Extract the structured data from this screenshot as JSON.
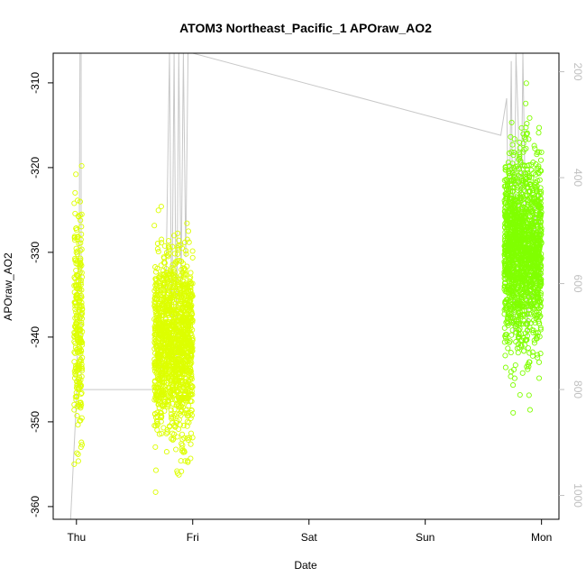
{
  "chart_data": {
    "type": "scatter",
    "title": "ATOM3 Northeast_Pacific_1 APOraw_AO2",
    "xlabel": "Date",
    "ylabel": "APOraw_AO2",
    "x_tick_labels": [
      "Thu",
      "Fri",
      "Sat",
      "Sun",
      "Mon"
    ],
    "x_range_days": [
      -0.2,
      4.15
    ],
    "y_ticks": [
      -360,
      -350,
      -340,
      -330,
      -320,
      -310
    ],
    "ylim": [
      -361.5,
      -306.5
    ],
    "right_axis": {
      "ticks": [
        200,
        400,
        600,
        800,
        1000
      ],
      "range": [
        1045,
        165
      ],
      "color": "#bfbfbf"
    },
    "point_colors": {
      "early": "#ddff00",
      "late": "#80ff00"
    },
    "line_color": "#c8c8c8",
    "point_clusters": [
      {
        "x_start": -0.02,
        "x_end": 0.05,
        "y_center": -338,
        "y_spread": 6.5,
        "y_min": -355,
        "y_max": -319.8,
        "count": 260,
        "color": "#ddff00"
      },
      {
        "x_start": 0.67,
        "x_end": 1.0,
        "y_center": -341,
        "y_spread": 5.2,
        "y_min": -359,
        "y_max": -318,
        "count": 1400,
        "color": "#ddff00"
      },
      {
        "x_start": 3.68,
        "x_end": 4.0,
        "y_center": -330,
        "y_spread": 5.6,
        "y_min": -353.5,
        "y_max": -305,
        "count": 1600,
        "color": "#80ff00"
      }
    ],
    "pressure_path": [
      [
        -0.05,
        1045
      ],
      [
        0.0,
        820
      ],
      [
        0.01,
        700
      ],
      [
        0.025,
        500
      ],
      [
        0.03,
        165
      ],
      [
        0.04,
        165
      ],
      [
        0.04,
        800
      ],
      [
        0.65,
        800
      ],
      [
        0.72,
        800
      ],
      [
        0.77,
        600
      ],
      [
        0.8,
        165
      ],
      [
        0.82,
        700
      ],
      [
        0.84,
        165
      ],
      [
        0.86,
        750
      ],
      [
        0.88,
        165
      ],
      [
        0.9,
        600
      ],
      [
        0.92,
        165
      ],
      [
        0.94,
        550
      ],
      [
        0.96,
        165
      ],
      [
        1.0,
        165
      ],
      [
        3.65,
        320
      ],
      [
        3.7,
        250
      ],
      [
        3.72,
        550
      ],
      [
        3.74,
        180
      ],
      [
        3.76,
        700
      ],
      [
        3.78,
        165
      ],
      [
        3.8,
        300
      ],
      [
        3.82,
        600
      ],
      [
        3.84,
        165
      ],
      [
        3.86,
        450
      ],
      [
        3.88,
        700
      ],
      [
        3.9,
        500
      ],
      [
        3.92,
        650
      ],
      [
        3.94,
        450
      ],
      [
        3.96,
        600
      ],
      [
        3.98,
        420
      ],
      [
        4.0,
        600
      ]
    ]
  }
}
